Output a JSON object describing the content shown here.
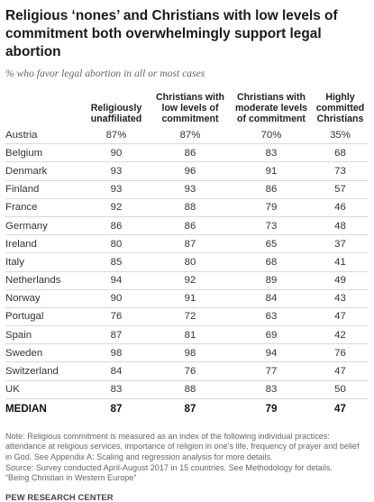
{
  "chart_data": {
    "type": "table",
    "title": "Religious ‘nones’ and Christians with low levels of commitment both overwhelmingly support legal abortion",
    "subtitle": "% who favor legal abortion in all or most cases",
    "columns": [
      "Religiously unaffiliated",
      "Christians with low levels of commitment",
      "Christians with moderate levels of commitment",
      "Highly committed Christians"
    ],
    "rows": [
      {
        "label": "Austria",
        "values": [
          "87%",
          "87%",
          "70%",
          "35%"
        ]
      },
      {
        "label": "Belgium",
        "values": [
          "90",
          "86",
          "83",
          "68"
        ]
      },
      {
        "label": "Denmark",
        "values": [
          "93",
          "96",
          "91",
          "73"
        ]
      },
      {
        "label": "Finland",
        "values": [
          "93",
          "93",
          "86",
          "57"
        ]
      },
      {
        "label": "France",
        "values": [
          "92",
          "88",
          "79",
          "46"
        ]
      },
      {
        "label": "Germany",
        "values": [
          "86",
          "86",
          "73",
          "48"
        ]
      },
      {
        "label": "Ireland",
        "values": [
          "80",
          "87",
          "65",
          "37"
        ]
      },
      {
        "label": "Italy",
        "values": [
          "85",
          "80",
          "68",
          "41"
        ]
      },
      {
        "label": "Netherlands",
        "values": [
          "94",
          "92",
          "89",
          "49"
        ]
      },
      {
        "label": "Norway",
        "values": [
          "90",
          "91",
          "84",
          "43"
        ]
      },
      {
        "label": "Portugal",
        "values": [
          "76",
          "72",
          "63",
          "47"
        ]
      },
      {
        "label": "Spain",
        "values": [
          "87",
          "81",
          "69",
          "42"
        ]
      },
      {
        "label": "Sweden",
        "values": [
          "98",
          "98",
          "94",
          "76"
        ]
      },
      {
        "label": "Switzerland",
        "values": [
          "84",
          "76",
          "77",
          "47"
        ]
      },
      {
        "label": "UK",
        "values": [
          "83",
          "88",
          "83",
          "50"
        ]
      }
    ],
    "median": {
      "label": "MEDIAN",
      "values": [
        "87",
        "87",
        "79",
        "47"
      ]
    }
  },
  "notes": [
    "Note: Religious commitment is measured as an index of the following individual practices: attendance at religious services, importance of religion in one’s life, frequency of prayer and belief in God. See Appendix A: Scaling and regression analysis for more details.",
    "Source: Survey conducted April-August 2017 in 15 countries. See Methodology for details.",
    "“Being Christian in Western Europe”"
  ],
  "brand": "PEW RESEARCH CENTER"
}
